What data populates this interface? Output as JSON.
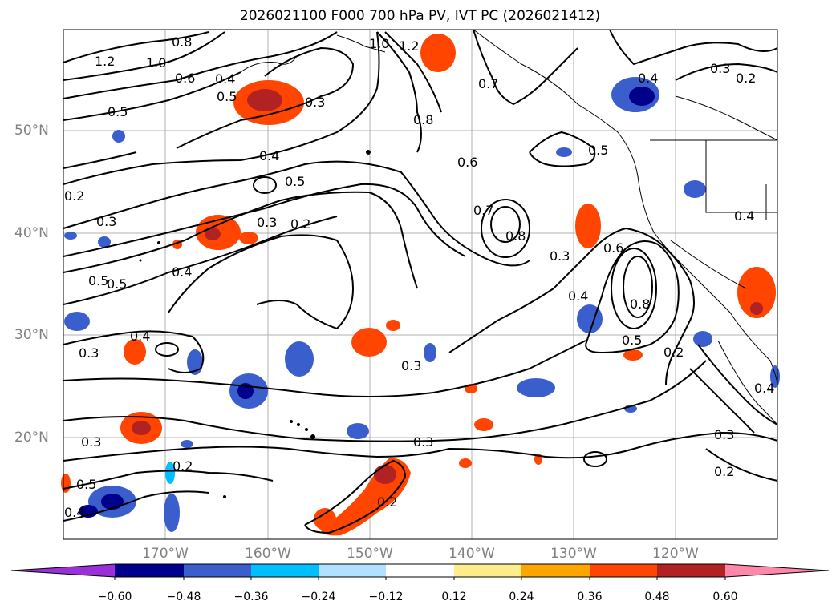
{
  "title": "2026021100 F000 700 hPa PV, IVT PC (2026021412)",
  "axes": {
    "lat_labels": [
      "50°N",
      "40°N",
      "30°N",
      "20°N"
    ],
    "lon_labels": [
      "170°W",
      "160°W",
      "150°W",
      "140°W",
      "130°W",
      "120°W"
    ]
  },
  "contour_labels": [
    "1.2",
    "1.0",
    "0.8",
    "0.6",
    "0.4",
    "0.5",
    "0.3",
    "0.4",
    "0.5",
    "0.3",
    "0.2",
    "0.4",
    "0.2",
    "0.3",
    "0.5",
    "0.5",
    "0.4",
    "0.3",
    "0.3",
    "0.2",
    "0.2",
    "0.3",
    "0.5",
    "0.4",
    "1.0",
    "1.2",
    "0.8",
    "0.6",
    "0.7",
    "0.7",
    "0.8",
    "0.3",
    "0.6",
    "0.4",
    "0.8",
    "0.5",
    "0.2",
    "0.5",
    "0.3",
    "0.2",
    "0.4",
    "0.4",
    "0.3",
    "0.2",
    "0.3",
    "0.4",
    "0.5"
  ],
  "colorbar": {
    "ticks": [
      "−0.60",
      "−0.48",
      "−0.36",
      "−0.24",
      "−0.12",
      "0.12",
      "0.24",
      "0.36",
      "0.48",
      "0.60"
    ],
    "colors": [
      "#9b30d8",
      "#00008b",
      "#3a5fcd",
      "#00bfff",
      "#b0e2ff",
      "#ffffff",
      "#ffec8b",
      "#ffa500",
      "#ff4500",
      "#b22222",
      "#ff88aa"
    ]
  },
  "colors": {
    "land": "#000000",
    "grid": "#b0b0b0",
    "label": "#808080"
  }
}
